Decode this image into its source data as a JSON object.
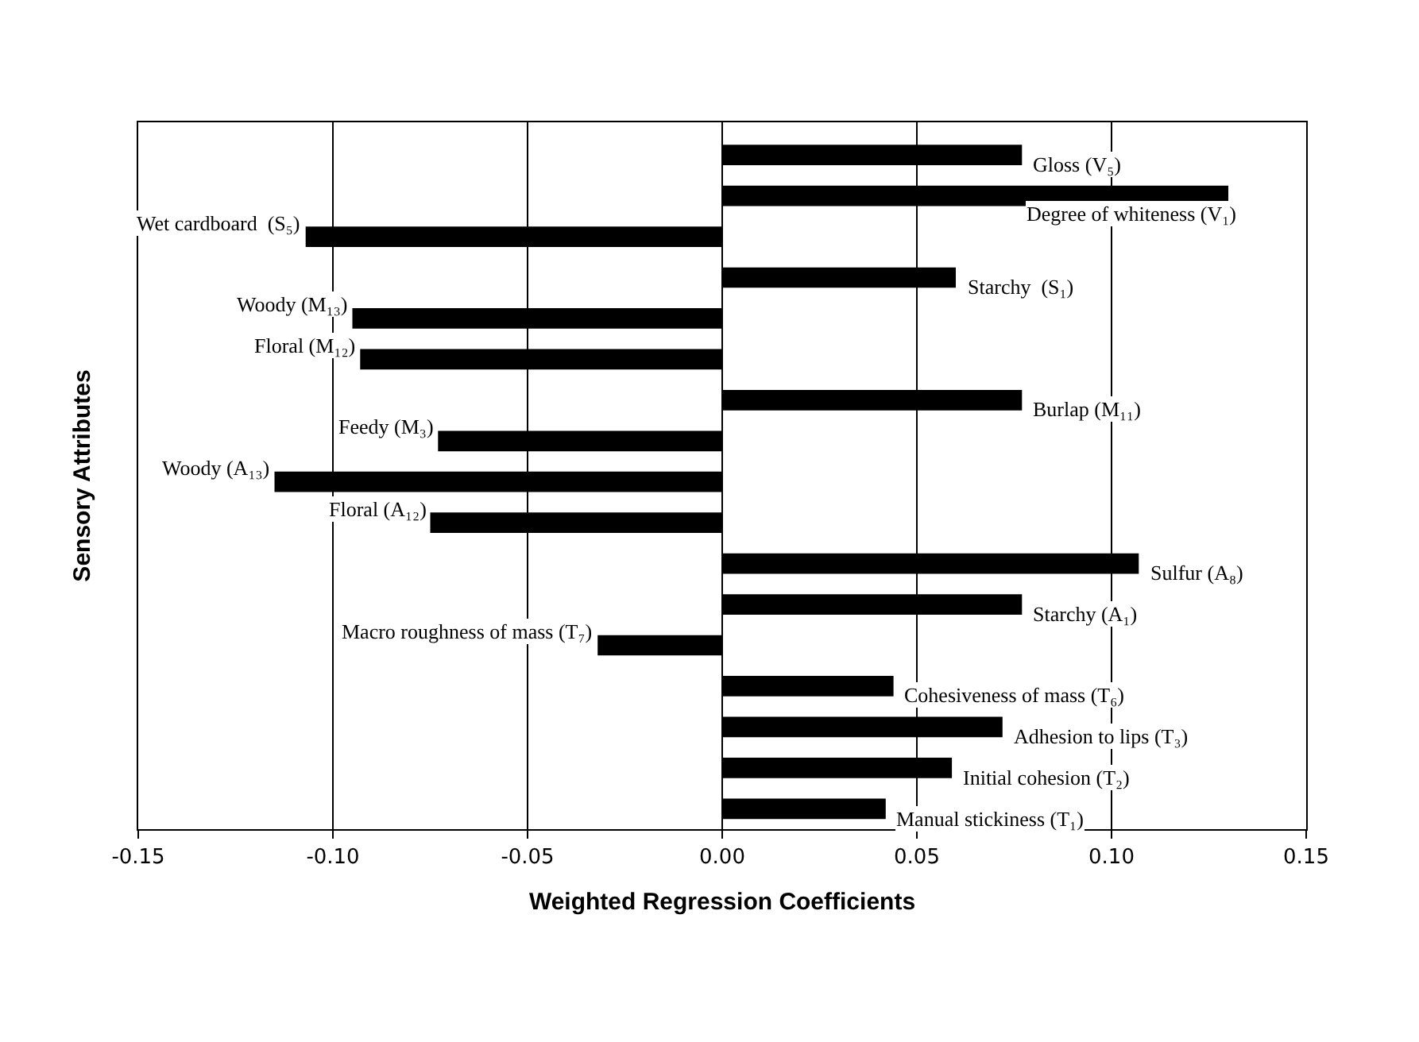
{
  "chart_data": {
    "type": "bar",
    "orientation": "horizontal",
    "xlabel": "Weighted Regression Coefficients",
    "ylabel": "Sensory Attributes",
    "categories": [
      null,
      null,
      null,
      null,
      null,
      null,
      null,
      null,
      null,
      null,
      null,
      null,
      null,
      null,
      null,
      null,
      null
    ],
    "values": [
      0.077,
      0.13,
      -0.107,
      0.06,
      -0.095,
      -0.093,
      0.077,
      -0.073,
      -0.115,
      -0.075,
      0.107,
      0.077,
      -0.032,
      0.044,
      0.072,
      0.059,
      0.042
    ],
    "annotations": [
      {
        "text": "Gloss (V₅)",
        "x": 0.077
      },
      {
        "text": "Degree of whiteness (V₁)",
        "x": 0.13
      },
      {
        "text": "Wet cardboard  (S₅)",
        "x": -0.107
      },
      {
        "text": "Starchy  (S₁)",
        "x": 0.06
      },
      {
        "text": "Woody (M₁₃)",
        "x": -0.095
      },
      {
        "text": "Floral (M₁₂)",
        "x": -0.093
      },
      {
        "text": "Burlap (M₁₁)",
        "x": 0.077
      },
      {
        "text": "Feedy (M₃)",
        "x": -0.073
      },
      {
        "text": "Woody (A₁₃)",
        "x": -0.115
      },
      {
        "text": "Floral (A₁₂)",
        "x": -0.075
      },
      {
        "text": "Sulfur (A₈)",
        "x": 0.107
      },
      {
        "text": "Starchy (A₁)",
        "x": 0.077
      },
      {
        "text": "Macro roughness of mass (T₇)",
        "x": -0.032
      },
      {
        "text": "Cohesiveness of mass (T₆)",
        "x": 0.044
      },
      {
        "text": "Adhesion to lips (T₃)",
        "x": 0.072
      },
      {
        "text": "Initial cohesion (T₂)",
        "x": 0.059
      },
      {
        "text": "Manual stickiness (T₁)",
        "x": 0.042
      }
    ],
    "color": "#000000",
    "xlim": [
      -0.15,
      0.15
    ],
    "xticks": [
      {
        "value": -0.15,
        "label": "-0.15"
      },
      {
        "value": -0.1,
        "label": "-0.10"
      },
      {
        "value": -0.05,
        "label": "-0.05"
      },
      {
        "value": 0,
        "label": "0.00"
      },
      {
        "value": 0.05,
        "label": "0.05"
      },
      {
        "value": 0.1,
        "label": "0.10"
      },
      {
        "value": 0.15,
        "label": "0.15"
      }
    ],
    "grid": "x",
    "tick_labels": "x"
  }
}
